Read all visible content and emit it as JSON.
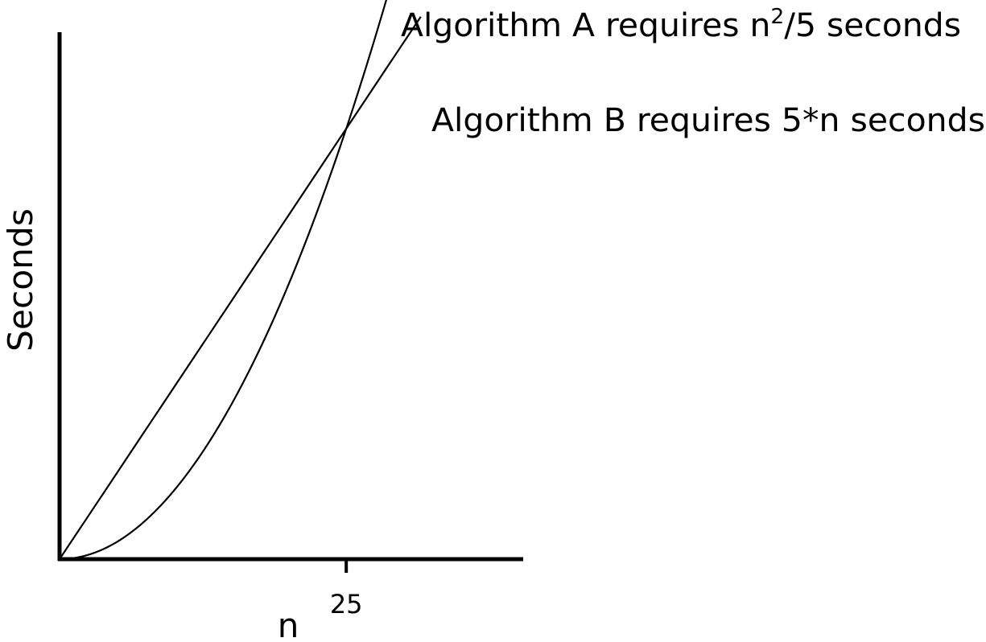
{
  "chart_data": {
    "type": "line",
    "title": "",
    "xlabel": "n",
    "ylabel": "Seconds",
    "x_ticks": [
      {
        "value": 25,
        "label": "25"
      }
    ],
    "xlim": [
      0,
      40.5
    ],
    "ylim": [
      0,
      153
    ],
    "grid": false,
    "legend": "none",
    "series": [
      {
        "formula": "n^2/5",
        "label_main": "Algorithm A requires n",
        "label_sup": "2",
        "label_tail": "/5 seconds",
        "x_end": 28.7,
        "color": "#000000"
      },
      {
        "formula": "5*n",
        "label": "Algorithm B requires 5*n seconds",
        "x_end": 31.5,
        "color": "#000000"
      }
    ]
  }
}
